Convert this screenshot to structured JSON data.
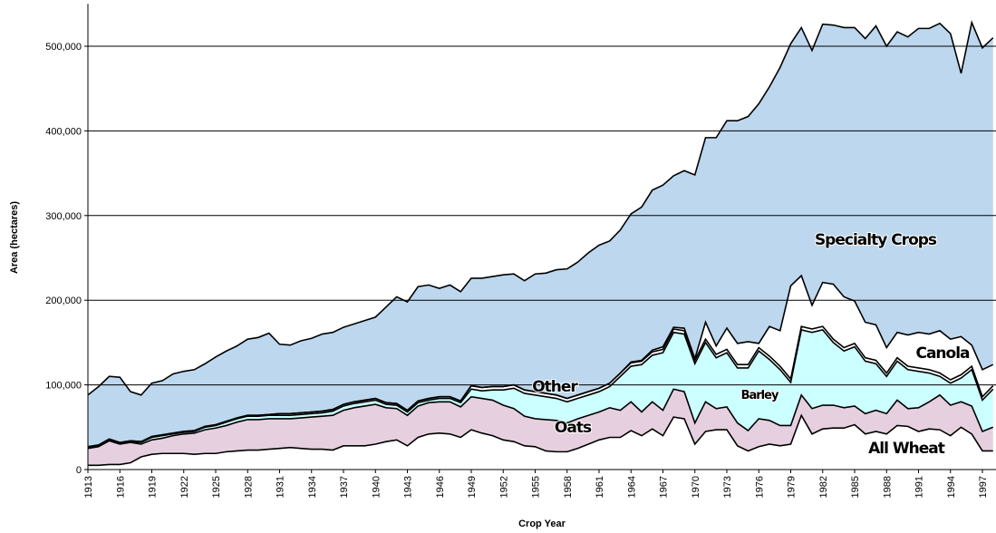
{
  "chart_data": {
    "type": "stacked-area",
    "x_label": "Crop Year",
    "y_label": "Area (hectares)",
    "x": [
      1913,
      1914,
      1915,
      1916,
      1917,
      1918,
      1919,
      1920,
      1921,
      1922,
      1923,
      1924,
      1925,
      1926,
      1927,
      1928,
      1929,
      1930,
      1931,
      1932,
      1933,
      1934,
      1935,
      1936,
      1937,
      1938,
      1939,
      1940,
      1941,
      1942,
      1943,
      1944,
      1945,
      1946,
      1947,
      1948,
      1949,
      1950,
      1951,
      1952,
      1953,
      1954,
      1955,
      1956,
      1957,
      1958,
      1959,
      1960,
      1961,
      1962,
      1963,
      1964,
      1965,
      1966,
      1967,
      1968,
      1969,
      1970,
      1971,
      1972,
      1973,
      1974,
      1975,
      1976,
      1977,
      1978,
      1979,
      1980,
      1981,
      1982,
      1983,
      1984,
      1985,
      1986,
      1987,
      1988,
      1989,
      1990,
      1991,
      1992,
      1993,
      1994,
      1995,
      1996,
      1997,
      1998
    ],
    "xlim": [
      1913,
      1998
    ],
    "xticks": [
      1913,
      1916,
      1919,
      1922,
      1925,
      1928,
      1931,
      1934,
      1937,
      1940,
      1943,
      1946,
      1949,
      1952,
      1955,
      1958,
      1961,
      1964,
      1967,
      1970,
      1973,
      1976,
      1979,
      1982,
      1985,
      1988,
      1991,
      1994,
      1997
    ],
    "ylim": [
      0,
      550000
    ],
    "yticks": [
      0,
      {
        "value": 100000,
        "label": "100,000"
      },
      {
        "value": 200000,
        "label": "200,000"
      },
      {
        "value": 300000,
        "label": "300,000"
      },
      {
        "value": 400000,
        "label": "400,000"
      },
      {
        "value": 500000,
        "label": "500,000"
      }
    ],
    "grid": true,
    "series": [
      {
        "name": "All Wheat",
        "color": "#ffffff",
        "values": [
          5000,
          5000,
          6000,
          6000,
          8000,
          15000,
          18000,
          19000,
          19000,
          19000,
          18000,
          19000,
          19000,
          21000,
          22000,
          23000,
          23000,
          24000,
          25000,
          26000,
          25000,
          24000,
          24000,
          23000,
          28000,
          28000,
          28000,
          30000,
          33000,
          35000,
          28000,
          38000,
          42000,
          43000,
          42000,
          38000,
          47000,
          43000,
          40000,
          35000,
          33000,
          28000,
          27000,
          22000,
          21000,
          21000,
          25000,
          30000,
          35000,
          38000,
          38000,
          46000,
          40000,
          48000,
          40000,
          62000,
          60000,
          30000,
          45000,
          47000,
          47000,
          28000,
          22000,
          27000,
          30000,
          28000,
          30000,
          64000,
          42000,
          48000,
          49000,
          49000,
          53000,
          42000,
          45000,
          42000,
          52000,
          51000,
          45000,
          48000,
          47000,
          40000,
          50000,
          42000,
          22000,
          22000
        ]
      },
      {
        "name": "Oats",
        "color": "#e6d0df",
        "values": [
          20000,
          22000,
          28000,
          24000,
          24000,
          15000,
          17000,
          18000,
          21000,
          23000,
          25000,
          28000,
          30000,
          31000,
          34000,
          36000,
          36000,
          36000,
          35000,
          34000,
          36000,
          38000,
          39000,
          41000,
          42000,
          45000,
          47000,
          47000,
          40000,
          37000,
          36000,
          37000,
          37000,
          37000,
          38000,
          36000,
          39000,
          41000,
          42000,
          41000,
          39000,
          35000,
          33000,
          37000,
          37000,
          34000,
          35000,
          34000,
          33000,
          35000,
          32000,
          34000,
          28000,
          32000,
          30000,
          33000,
          32000,
          25000,
          35000,
          25000,
          27000,
          27000,
          24000,
          33000,
          28000,
          24000,
          22000,
          24000,
          30000,
          28000,
          27000,
          24000,
          22000,
          24000,
          25000,
          24000,
          30000,
          21000,
          28000,
          32000,
          41000,
          36000,
          30000,
          33000,
          23000,
          28000
        ]
      },
      {
        "name": "Barley",
        "color": "#ccffff",
        "values": [
          1000,
          1000,
          1000,
          1000,
          1000,
          2000,
          3000,
          3000,
          2000,
          2000,
          2000,
          3000,
          3000,
          4000,
          4000,
          4000,
          4000,
          4000,
          4000,
          4000,
          4000,
          4000,
          4000,
          5000,
          5000,
          5000,
          5000,
          5000,
          4000,
          4000,
          4000,
          4000,
          3000,
          4000,
          4000,
          5000,
          9000,
          9000,
          12000,
          18000,
          24000,
          27000,
          28000,
          27000,
          26000,
          25000,
          24000,
          24000,
          24000,
          25000,
          40000,
          42000,
          56000,
          55000,
          68000,
          67000,
          68000,
          70000,
          70000,
          60000,
          64000,
          65000,
          74000,
          80000,
          72000,
          66000,
          51000,
          77000,
          90000,
          89000,
          74000,
          67000,
          70000,
          62000,
          55000,
          44000,
          46000,
          46000,
          43000,
          34000,
          22000,
          26000,
          28000,
          43000,
          37000,
          45000
        ]
      },
      {
        "name": "Other",
        "color": "#ffffff",
        "values": [
          1000,
          1000,
          1000,
          1000,
          1000,
          1000,
          1000,
          1000,
          1000,
          1000,
          1000,
          1000,
          1000,
          1000,
          1000,
          1000,
          1000,
          1000,
          2000,
          2000,
          2000,
          2000,
          2000,
          2000,
          2000,
          2000,
          2000,
          2000,
          2000,
          2000,
          2000,
          2000,
          2000,
          2000,
          2000,
          2000,
          4000,
          4000,
          4000,
          4000,
          4000,
          4000,
          4000,
          4000,
          4000,
          4000,
          4000,
          4000,
          4000,
          4000,
          4000,
          4000,
          4000,
          4000,
          4000,
          4000,
          4000,
          4000,
          4000,
          4000,
          4000,
          4000,
          4000,
          4000,
          4000,
          4000,
          4000,
          4000,
          4000,
          4000,
          4000,
          4000,
          4000,
          4000,
          4000,
          4000,
          4000,
          4000,
          4000,
          4000,
          4000,
          4000,
          4000,
          4000,
          4000,
          4000
        ]
      },
      {
        "name": "Canola",
        "color": "#ffffff",
        "values": [
          0,
          0,
          0,
          0,
          0,
          0,
          0,
          0,
          0,
          0,
          0,
          0,
          0,
          0,
          0,
          0,
          0,
          0,
          0,
          0,
          0,
          0,
          0,
          0,
          0,
          0,
          0,
          0,
          0,
          0,
          0,
          0,
          0,
          0,
          0,
          0,
          0,
          0,
          0,
          0,
          0,
          0,
          0,
          0,
          0,
          0,
          0,
          0,
          0,
          0,
          0,
          1000,
          1000,
          2000,
          3000,
          2000,
          3000,
          2000,
          20000,
          10000,
          25000,
          25000,
          27000,
          5000,
          35000,
          42000,
          110000,
          60000,
          28000,
          52000,
          65000,
          60000,
          50000,
          42000,
          42000,
          30000,
          30000,
          37000,
          42000,
          42000,
          50000,
          48000,
          45000,
          25000,
          32000,
          25000
        ]
      },
      {
        "name": "Specialty Crops",
        "color": "#bdd7ee",
        "values": [
          61000,
          69000,
          74000,
          77000,
          58000,
          55000,
          63000,
          64000,
          70000,
          71000,
          72000,
          74000,
          80000,
          83000,
          85000,
          90000,
          92000,
          96000,
          82000,
          81000,
          85000,
          87000,
          91000,
          91000,
          91000,
          92000,
          94000,
          96000,
          113000,
          126000,
          128000,
          135000,
          134000,
          128000,
          132000,
          129000,
          127000,
          129000,
          130000,
          132000,
          131000,
          129000,
          139000,
          142000,
          148000,
          153000,
          157000,
          164000,
          169000,
          168000,
          169000,
          175000,
          181000,
          189000,
          191000,
          179000,
          186000,
          217000,
          218000,
          246000,
          245000,
          263000,
          266000,
          283000,
          283000,
          311000,
          286000,
          293000,
          301000,
          305000,
          306000,
          318000,
          323000,
          335000,
          353000,
          356000,
          355000,
          352000,
          359000,
          361000,
          363000,
          361000,
          311000,
          381000,
          380000,
          386000
        ]
      }
    ]
  }
}
